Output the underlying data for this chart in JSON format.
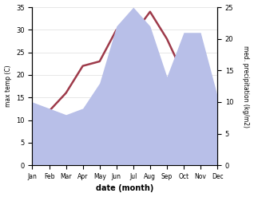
{
  "months": [
    "Jan",
    "Feb",
    "Mar",
    "Apr",
    "May",
    "Jun",
    "Jul",
    "Aug",
    "Sep",
    "Oct",
    "Nov",
    "Dec"
  ],
  "month_indices": [
    0,
    1,
    2,
    3,
    4,
    5,
    6,
    7,
    8,
    9,
    10,
    11
  ],
  "temp": [
    8,
    12,
    16,
    22,
    23,
    30,
    29,
    34,
    28,
    20,
    13,
    8
  ],
  "precip": [
    10,
    9,
    8,
    9,
    13,
    22,
    25,
    22,
    14,
    21,
    21,
    11
  ],
  "temp_color": "#9e3a4a",
  "precip_color": "#b8bfe8",
  "temp_ylim": [
    0,
    35
  ],
  "precip_ylim": [
    0,
    25
  ],
  "temp_yticks": [
    0,
    5,
    10,
    15,
    20,
    25,
    30,
    35
  ],
  "precip_yticks": [
    0,
    5,
    10,
    15,
    20,
    25
  ],
  "ylabel_left": "max temp (C)",
  "ylabel_right": "med. precipitation (kg/m2)",
  "xlabel": "date (month)",
  "background_color": "#ffffff"
}
